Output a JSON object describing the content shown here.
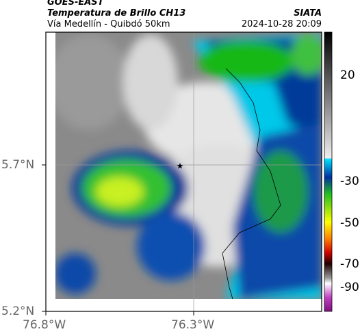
{
  "header": {
    "title": "GOES-EAST",
    "subtitle": "Temperatura de Brillo CH13",
    "location": "Vía Medellín - Quibdó 50km",
    "source": "SIATA",
    "datetime": "2024-10-28 20:09"
  },
  "axes": {
    "y_labels": [
      "5.7°N",
      "5.2°N"
    ],
    "x_labels": [
      "76.8°W",
      "76.3°W"
    ]
  },
  "colorbar": {
    "ticks": [
      "20",
      "-30",
      "-50",
      "-70",
      "-90"
    ]
  }
}
